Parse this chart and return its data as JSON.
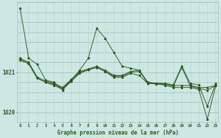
{
  "title": "Graphe pression niveau de la mer (hPa)",
  "bg_color": "#cde8e4",
  "plot_bg_color": "#cde8e4",
  "line_color": "#2d5a1b",
  "grid_color_v": "#b8d4d0",
  "grid_color_h": "#9bbfba",
  "text_color": "#2d5a1b",
  "x_ticks": [
    0,
    1,
    2,
    3,
    4,
    5,
    6,
    7,
    8,
    9,
    10,
    11,
    12,
    13,
    14,
    15,
    16,
    17,
    18,
    19,
    20,
    21,
    22,
    23
  ],
  "ylim": [
    1019.75,
    1022.75
  ],
  "yticks": [
    1020,
    1021
  ],
  "series": [
    [
      1022.6,
      1021.35,
      1021.2,
      1020.8,
      1020.75,
      1020.55,
      1020.8,
      1021.05,
      1021.35,
      1022.1,
      1021.85,
      1021.5,
      1021.15,
      1021.1,
      1021.05,
      1020.75,
      1020.72,
      1020.72,
      1020.68,
      1021.15,
      1020.72,
      1020.68,
      1020.15,
      1020.72
    ],
    [
      1021.35,
      1021.25,
      1020.88,
      1020.78,
      1020.72,
      1020.62,
      1020.82,
      1021.02,
      1021.08,
      1021.15,
      1021.05,
      1020.92,
      1020.92,
      1021.02,
      1021.05,
      1020.72,
      1020.72,
      1020.72,
      1020.67,
      1020.67,
      1020.67,
      1020.62,
      1020.62,
      1020.67
    ],
    [
      1021.32,
      1021.22,
      1020.85,
      1020.75,
      1020.7,
      1020.6,
      1020.8,
      1021.0,
      1021.06,
      1021.12,
      1021.02,
      1020.9,
      1020.9,
      1021.0,
      1021.02,
      1020.75,
      1020.7,
      1020.7,
      1020.65,
      1021.12,
      1020.65,
      1020.6,
      1020.55,
      1020.67
    ],
    [
      1021.3,
      1021.22,
      1020.85,
      1020.75,
      1020.67,
      1020.57,
      1020.77,
      1020.97,
      1021.06,
      1021.12,
      1021.02,
      1020.87,
      1020.87,
      1020.97,
      1020.92,
      1020.72,
      1020.72,
      1020.67,
      1020.62,
      1020.62,
      1020.62,
      1020.57,
      1019.82,
      1020.67
    ]
  ]
}
